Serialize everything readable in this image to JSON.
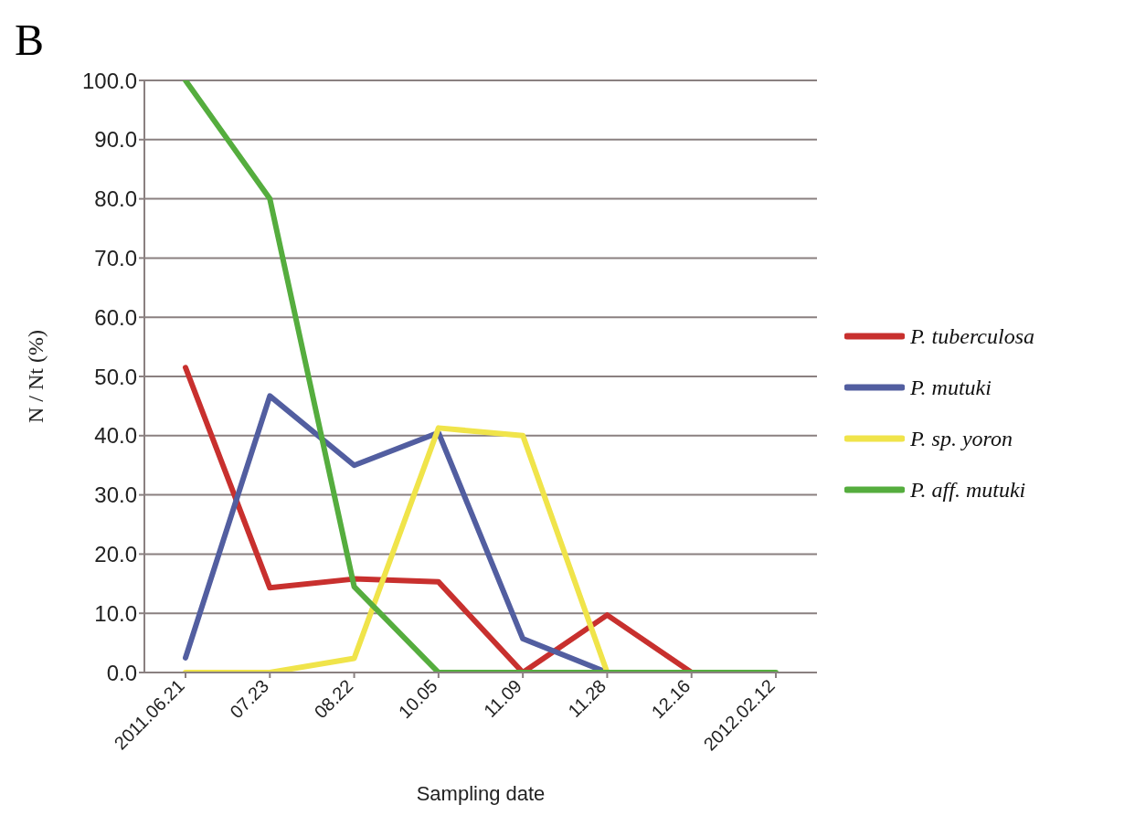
{
  "chart_data": {
    "type": "line",
    "annotations": [
      "B"
    ],
    "xlabel": "Sampling date",
    "ylabel": "N / Nt (%)",
    "categories": [
      "2011.06.21",
      "07.23",
      "08.22",
      "10.05",
      "11.09",
      "11.28",
      "12.16",
      "2012.02.12"
    ],
    "series": [
      {
        "name": "P. tuberculosa",
        "color": "#c8302e",
        "values": [
          51.5,
          14.3,
          15.8,
          15.3,
          0,
          9.7,
          0,
          null
        ]
      },
      {
        "name": "P. mutuki",
        "color": "#525ea0",
        "values": [
          2.5,
          46.7,
          35.0,
          40.5,
          5.7,
          0,
          null,
          null
        ]
      },
      {
        "name": "P. sp. yoron",
        "color": "#f0e44a",
        "values": [
          0,
          0,
          2.4,
          41.3,
          40.0,
          0,
          null,
          null
        ]
      },
      {
        "name": "P. aff. mutuki",
        "color": "#55ad3e",
        "values": [
          100,
          80,
          14.5,
          0,
          0,
          0,
          0,
          0
        ]
      }
    ],
    "ylim": [
      0,
      100
    ],
    "yticks": [
      {
        "value": 0,
        "label": "0.0"
      },
      {
        "value": 10,
        "label": "10.0"
      },
      {
        "value": 20,
        "label": "20.0"
      },
      {
        "value": 30,
        "label": "30.0"
      },
      {
        "value": 40,
        "label": "40.0"
      },
      {
        "value": 50,
        "label": "50.0"
      },
      {
        "value": 60,
        "label": "60.0"
      },
      {
        "value": 70,
        "label": "70.0"
      },
      {
        "value": 80,
        "label": "80.0"
      },
      {
        "value": 90,
        "label": "90.0"
      },
      {
        "value": 100,
        "label": "100.0"
      }
    ],
    "grid": "y",
    "legend": "right",
    "marker": "none",
    "line_style": "solid"
  }
}
